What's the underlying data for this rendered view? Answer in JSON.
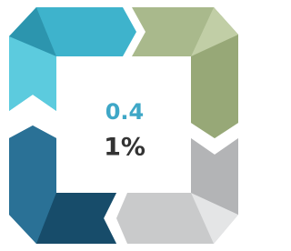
{
  "center": {
    "label": "0.4",
    "value": "1%"
  }
}
